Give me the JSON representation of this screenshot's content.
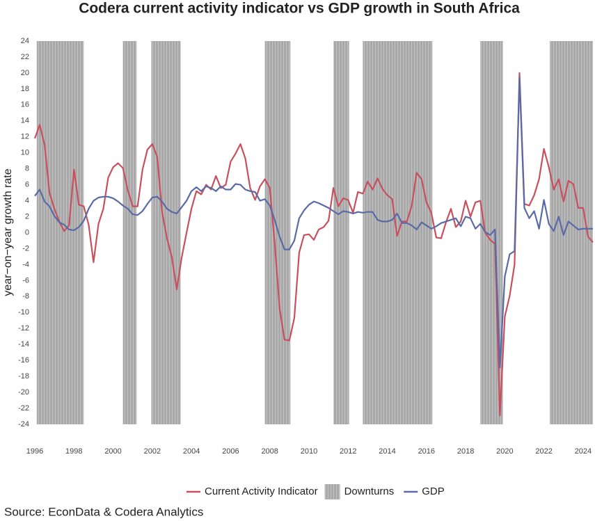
{
  "chart_data": {
    "type": "line",
    "title": "Codera current activity indicator vs GDP growth in South Africa",
    "ylabel": "year−on−year growth rate",
    "source": "Source: EconData & Codera Analytics",
    "xlim": [
      1996,
      2024.5
    ],
    "ylim": [
      -24,
      24
    ],
    "xticks": [
      1996,
      1998,
      2000,
      2002,
      2004,
      2006,
      2008,
      2010,
      2012,
      2014,
      2016,
      2018,
      2020,
      2022,
      2024
    ],
    "yticks": [
      -24,
      -22,
      -20,
      -18,
      -16,
      -14,
      -12,
      -10,
      -8,
      -6,
      -4,
      -2,
      0,
      2,
      4,
      6,
      8,
      10,
      12,
      14,
      16,
      18,
      20,
      22,
      24
    ],
    "grid": false,
    "legend": "bottom",
    "downturns": {
      "name": "Downturns",
      "color": "#a9a9a9",
      "intervals": [
        [
          1996.1,
          1998.5
        ],
        [
          2000.5,
          2001.2
        ],
        [
          2001.95,
          2003.45
        ],
        [
          2007.75,
          2009.05
        ],
        [
          2011.25,
          2012.05
        ],
        [
          2012.75,
          2016.3
        ],
        [
          2018.75,
          2019.9
        ],
        [
          2022.3,
          2024.5
        ]
      ]
    },
    "x": [
      1996,
      1996.25,
      1996.5,
      1996.75,
      1997,
      1997.25,
      1997.5,
      1997.75,
      1998,
      1998.25,
      1998.5,
      1998.75,
      1999,
      1999.25,
      1999.5,
      1999.75,
      2000,
      2000.25,
      2000.5,
      2000.75,
      2001,
      2001.25,
      2001.5,
      2001.75,
      2002,
      2002.25,
      2002.5,
      2002.75,
      2003,
      2003.25,
      2003.5,
      2003.75,
      2004,
      2004.25,
      2004.5,
      2004.75,
      2005,
      2005.25,
      2005.5,
      2005.75,
      2006,
      2006.25,
      2006.5,
      2006.75,
      2007,
      2007.25,
      2007.5,
      2007.75,
      2008,
      2008.25,
      2008.5,
      2008.75,
      2009,
      2009.25,
      2009.5,
      2009.75,
      2010,
      2010.25,
      2010.5,
      2010.75,
      2011,
      2011.25,
      2011.5,
      2011.75,
      2012,
      2012.25,
      2012.5,
      2012.75,
      2013,
      2013.25,
      2013.5,
      2013.75,
      2014,
      2014.25,
      2014.5,
      2014.75,
      2015,
      2015.25,
      2015.5,
      2015.75,
      2016,
      2016.25,
      2016.5,
      2016.75,
      2017,
      2017.25,
      2017.5,
      2017.75,
      2018,
      2018.25,
      2018.5,
      2018.75,
      2019,
      2019.25,
      2019.5,
      2019.75,
      2020,
      2020.25,
      2020.5,
      2020.75,
      2021,
      2021.25,
      2021.5,
      2021.75,
      2022,
      2022.25,
      2022.5,
      2022.75,
      2023,
      2023.25,
      2023.5,
      2023.75,
      2024,
      2024.25,
      2024.5
    ],
    "series": [
      {
        "name": "Current Activity Indicator",
        "color": "#c8505e",
        "values": [
          11.8,
          13.5,
          11,
          5,
          3,
          1.4,
          0.2,
          0.9,
          7.9,
          3.5,
          3.3,
          1.0,
          -3.7,
          1.1,
          3,
          6.9,
          8.2,
          8.7,
          8.1,
          5.3,
          3.3,
          3.3,
          7.9,
          10.4,
          11.1,
          9.5,
          2.6,
          -0.7,
          -3.1,
          -7.1,
          -3.1,
          0,
          3,
          5.2,
          4.8,
          6,
          5.4,
          7.1,
          5.6,
          6,
          8.9,
          9.9,
          11.1,
          9.3,
          5.6,
          4.1,
          5.8,
          6.7,
          5.6,
          -1.3,
          -9.5,
          -13.4,
          -13.5,
          -10.7,
          -2.5,
          -0.3,
          -0.2,
          -0.9,
          0.4,
          0.7,
          1.5,
          5.6,
          3.3,
          4.3,
          4.1,
          2.5,
          5.1,
          4.9,
          6.4,
          5.4,
          6.8,
          5.5,
          4.7,
          4.2,
          -0.4,
          1.4,
          1.4,
          3.4,
          7.5,
          6.7,
          3.8,
          2.5,
          -0.6,
          -0.7,
          1.3,
          3,
          0.7,
          1.4,
          4,
          2,
          3.8,
          4,
          0,
          -0.9,
          -1.4,
          -22.9,
          -10.5,
          -7.9,
          -4,
          20,
          3.6,
          3.4,
          4.7,
          6.7,
          10.5,
          8.2,
          5.4,
          6.7,
          3.9,
          6.5,
          6.1,
          3.1,
          3.1,
          -0.5,
          -1.2
        ]
      },
      {
        "name": "GDP",
        "color": "#5a6aa6",
        "values": [
          4.6,
          5.4,
          3.9,
          3.3,
          2.1,
          1.3,
          1.0,
          0.4,
          0.3,
          0.7,
          1.5,
          3,
          4,
          4.4,
          4.5,
          4.5,
          4.3,
          3.9,
          3.4,
          3,
          2.3,
          2.2,
          2.7,
          3.6,
          4.4,
          4.5,
          3.9,
          3,
          2.6,
          2.4,
          3.2,
          4,
          5.2,
          5.7,
          5.2,
          5.8,
          5.6,
          5.2,
          5.8,
          5.4,
          5.4,
          6.1,
          6,
          5.4,
          5.2,
          5.1,
          4,
          4.2,
          3.4,
          1.6,
          -0.5,
          -2.1,
          -2.1,
          -1,
          1.8,
          2.8,
          3.5,
          3.9,
          3.7,
          3.4,
          3.1,
          2.7,
          2.3,
          2.7,
          2.6,
          2.4,
          2.6,
          2.5,
          2.6,
          2.6,
          1.6,
          1.4,
          1.4,
          1.6,
          2.4,
          1.2,
          1.2,
          0.9,
          0.4,
          1.3,
          0.9,
          0.5,
          0.8,
          1.2,
          1.4,
          1.6,
          1.8,
          0.8,
          2,
          1.8,
          0.5,
          1.1,
          0.1,
          -0.3,
          0.4,
          -16.9,
          -5.5,
          -2.7,
          -2.3,
          19.4,
          3.1,
          1.8,
          2.7,
          0.5,
          4.1,
          1.1,
          0.2,
          2,
          -0.3,
          1.4,
          0.9,
          0.4,
          0.5,
          0.5,
          0.5
        ]
      }
    ]
  }
}
